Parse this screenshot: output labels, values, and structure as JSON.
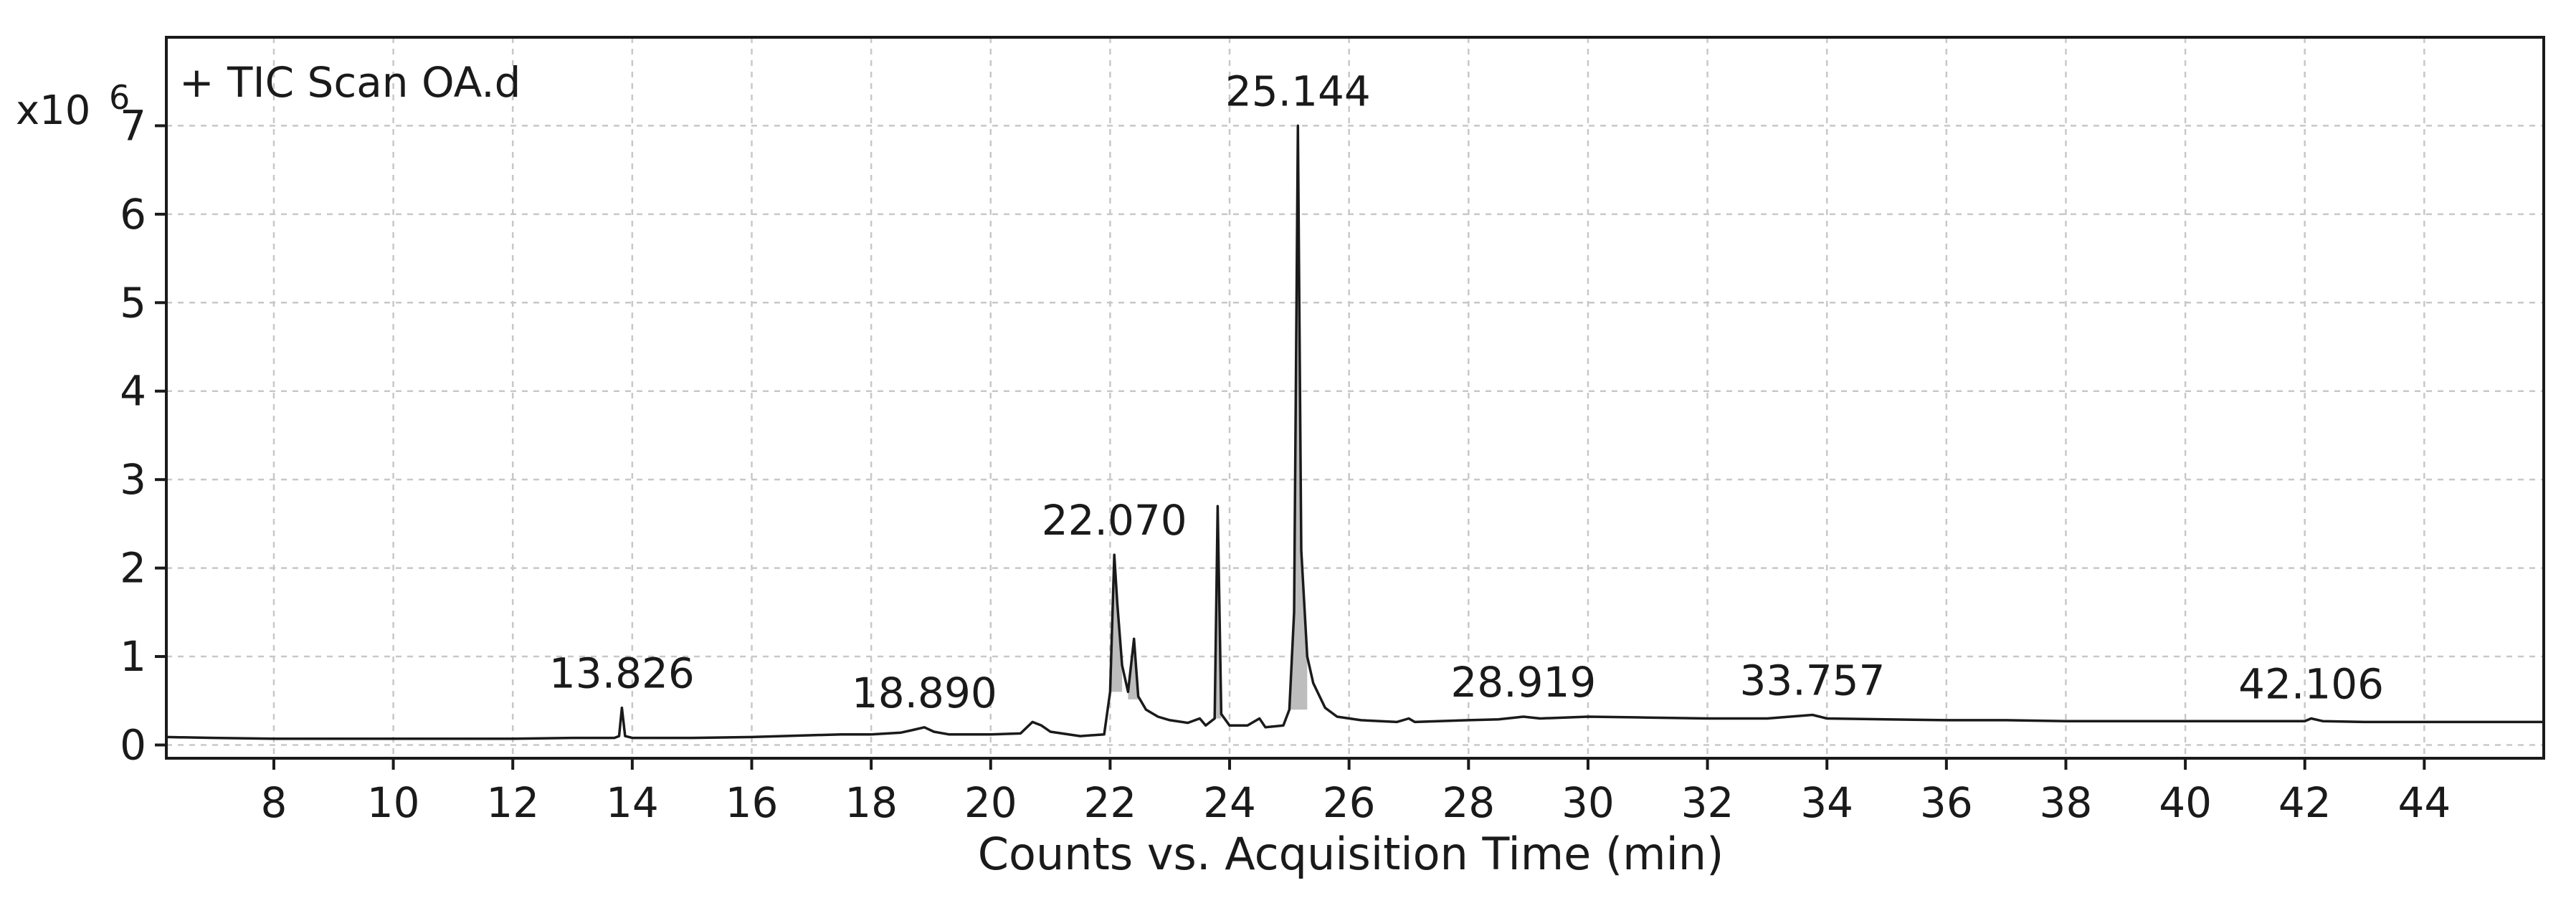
{
  "chart_data": {
    "type": "line",
    "title": "+ TIC Scan OA.d",
    "xlabel": "Counts vs. Acquisition Time (min)",
    "ylabel": "",
    "y_multiplier": "x10",
    "y_exponent": "6",
    "xlim": [
      6.2,
      46
    ],
    "ylim": [
      -0.15,
      8.0
    ],
    "x_ticks": [
      8,
      10,
      12,
      14,
      16,
      18,
      20,
      22,
      24,
      26,
      28,
      30,
      32,
      34,
      36,
      38,
      40,
      42,
      44
    ],
    "y_ticks": [
      0,
      1,
      2,
      3,
      4,
      5,
      6,
      7
    ],
    "grid": true,
    "series": [
      {
        "values_xy": [
          [
            6.2,
            0.09
          ],
          [
            7,
            0.08
          ],
          [
            8,
            0.07
          ],
          [
            9,
            0.07
          ],
          [
            10,
            0.07
          ],
          [
            11,
            0.07
          ],
          [
            12,
            0.07
          ],
          [
            13,
            0.08
          ],
          [
            13.7,
            0.08
          ],
          [
            13.78,
            0.1
          ],
          [
            13.826,
            0.42
          ],
          [
            13.88,
            0.1
          ],
          [
            14,
            0.08
          ],
          [
            15,
            0.08
          ],
          [
            16,
            0.09
          ],
          [
            17,
            0.11
          ],
          [
            17.5,
            0.12
          ],
          [
            18,
            0.12
          ],
          [
            18.5,
            0.14
          ],
          [
            18.7,
            0.17
          ],
          [
            18.89,
            0.2
          ],
          [
            19.05,
            0.15
          ],
          [
            19.3,
            0.12
          ],
          [
            20,
            0.12
          ],
          [
            20.5,
            0.13
          ],
          [
            20.7,
            0.26
          ],
          [
            20.85,
            0.22
          ],
          [
            21,
            0.15
          ],
          [
            21.5,
            0.1
          ],
          [
            21.9,
            0.12
          ],
          [
            22.0,
            0.6
          ],
          [
            22.07,
            2.15
          ],
          [
            22.12,
            1.6
          ],
          [
            22.2,
            0.9
          ],
          [
            22.3,
            0.6
          ],
          [
            22.4,
            1.2
          ],
          [
            22.47,
            0.55
          ],
          [
            22.6,
            0.4
          ],
          [
            22.8,
            0.32
          ],
          [
            23.0,
            0.28
          ],
          [
            23.3,
            0.25
          ],
          [
            23.5,
            0.3
          ],
          [
            23.6,
            0.22
          ],
          [
            23.75,
            0.3
          ],
          [
            23.8,
            2.7
          ],
          [
            23.86,
            0.35
          ],
          [
            24.0,
            0.22
          ],
          [
            24.3,
            0.22
          ],
          [
            24.5,
            0.3
          ],
          [
            24.6,
            0.2
          ],
          [
            24.9,
            0.22
          ],
          [
            25.0,
            0.4
          ],
          [
            25.08,
            1.5
          ],
          [
            25.144,
            7.0
          ],
          [
            25.2,
            2.2
          ],
          [
            25.3,
            1.0
          ],
          [
            25.4,
            0.7
          ],
          [
            25.6,
            0.42
          ],
          [
            25.8,
            0.32
          ],
          [
            26.2,
            0.28
          ],
          [
            26.8,
            0.26
          ],
          [
            27.0,
            0.3
          ],
          [
            27.1,
            0.26
          ],
          [
            27.5,
            0.27
          ],
          [
            28,
            0.28
          ],
          [
            28.5,
            0.29
          ],
          [
            28.919,
            0.32
          ],
          [
            29.2,
            0.3
          ],
          [
            30,
            0.32
          ],
          [
            31,
            0.31
          ],
          [
            32,
            0.3
          ],
          [
            33,
            0.3
          ],
          [
            33.757,
            0.34
          ],
          [
            34,
            0.3
          ],
          [
            35,
            0.29
          ],
          [
            36,
            0.28
          ],
          [
            37,
            0.28
          ],
          [
            38,
            0.27
          ],
          [
            39,
            0.27
          ],
          [
            40,
            0.27
          ],
          [
            41,
            0.27
          ],
          [
            42,
            0.27
          ],
          [
            42.106,
            0.3
          ],
          [
            42.3,
            0.27
          ],
          [
            43,
            0.26
          ],
          [
            44,
            0.26
          ],
          [
            45,
            0.26
          ],
          [
            46,
            0.26
          ]
        ],
        "color": "#1a1a1a"
      }
    ],
    "fills": [
      {
        "x": [
          22.0,
          22.2
        ]
      },
      {
        "x": [
          22.3,
          22.5
        ]
      },
      {
        "x": [
          23.75,
          23.86
        ]
      },
      {
        "x": [
          25.0,
          25.3
        ]
      }
    ],
    "annotations": [
      {
        "text": "13.826",
        "x": 13.826,
        "y": 0.42
      },
      {
        "text": "18.890",
        "x": 18.89,
        "y": 0.2
      },
      {
        "text": "22.070",
        "x": 22.07,
        "y": 2.15
      },
      {
        "text": "25.144",
        "x": 25.144,
        "y": 7.0
      },
      {
        "text": "28.919",
        "x": 28.919,
        "y": 0.32
      },
      {
        "text": "33.757",
        "x": 33.757,
        "y": 0.34
      },
      {
        "text": "42.106",
        "x": 42.106,
        "y": 0.3
      }
    ]
  }
}
